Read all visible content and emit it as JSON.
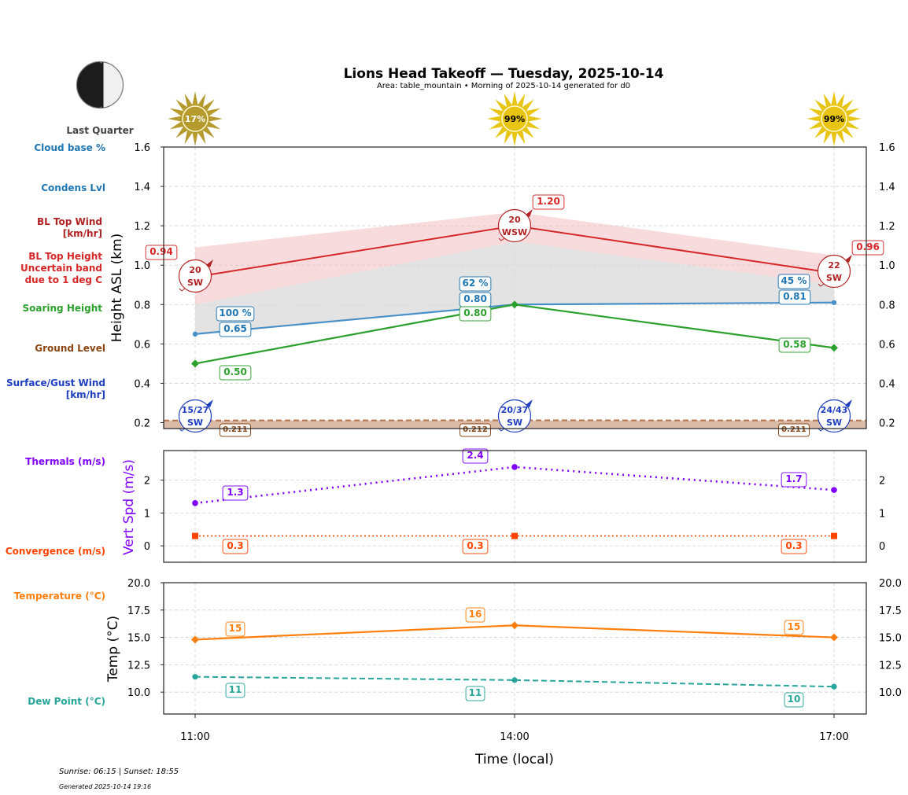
{
  "header": {
    "title": "Lions Head Takeoff — Tuesday, 2025-10-14",
    "subtitle": "Area: table_mountain • Morning of 2025-10-14 generated for d0"
  },
  "moon": {
    "phase": "Last Quarter",
    "icon": "moon-last-quarter-icon"
  },
  "footer": {
    "sun_times": "Sunrise: 06:15 | Sunset: 18:55",
    "generated": "Generated 2025-10-14 19:16"
  },
  "colors": {
    "cloud_base": "#1f77b4",
    "bl_top": "#d62728",
    "soaring": "#2ca02c",
    "ground": "#8b4513",
    "surface_wind": "#1e3fbf",
    "thermals": "#7f00ff",
    "convergence": "#ff4500",
    "temperature": "#ff7f0e",
    "dew_point": "#26a69a"
  },
  "side_labels": {
    "cloud_base": "Cloud base %",
    "condens": "Condens Lvl",
    "bl_wind_1": "BL Top Wind",
    "bl_wind_2": "[km/hr]",
    "bl_height_1": "BL Top Height",
    "bl_height_2": "Uncertain band",
    "bl_height_3": "due to 1 deg C",
    "soaring": "Soaring Height",
    "ground": "Ground Level",
    "surface_1": "Surface/Gust Wind",
    "surface_2": "[km/hr]",
    "thermals": "Thermals (m/s)",
    "convergence": "Convergence (m/s)",
    "temperature": "Temperature (°C)",
    "dew_point": "Dew Point (°C)"
  },
  "chart_data": [
    {
      "type": "line",
      "panel": "height",
      "ylabel": "Height ASL (km)",
      "ylim": [
        0.17,
        1.6
      ],
      "yticks": [
        "0.2",
        "0.4",
        "0.6",
        "0.8",
        "1.0",
        "1.2",
        "1.4",
        "1.6"
      ],
      "x": [
        "11:00",
        "14:00",
        "17:00"
      ],
      "sun_percent": [
        "17%",
        "99%",
        "99%"
      ],
      "series": [
        {
          "name": "BL Top Height",
          "values": [
            0.94,
            1.2,
            0.96
          ],
          "labels": [
            "0.94",
            "1.20",
            "0.96"
          ],
          "band_upper": [
            1.09,
            1.27,
            1.05
          ],
          "band_lower": [
            0.8,
            1.12,
            0.9
          ]
        },
        {
          "name": "Condens Lvl",
          "values": [
            0.65,
            0.8,
            0.81
          ],
          "labels": [
            "0.65",
            "0.80",
            "0.81"
          ]
        },
        {
          "name": "Cloud base %",
          "values": [
            100,
            62,
            45
          ],
          "labels": [
            "100 %",
            "62 %",
            "45 %"
          ]
        },
        {
          "name": "Soaring Height",
          "values": [
            0.5,
            0.8,
            0.58
          ],
          "labels": [
            "0.50",
            "0.80",
            "0.58"
          ]
        },
        {
          "name": "Ground Level",
          "values": [
            0.211,
            0.212,
            0.211
          ],
          "labels": [
            "0.211",
            "0.212",
            "0.211"
          ]
        }
      ],
      "bl_wind": [
        {
          "speed": "20",
          "dir": "SW"
        },
        {
          "speed": "20",
          "dir": "WSW"
        },
        {
          "speed": "22",
          "dir": "SW"
        }
      ],
      "surface_wind": [
        {
          "speed": "15/27",
          "dir": "SW"
        },
        {
          "speed": "20/37",
          "dir": "SW"
        },
        {
          "speed": "24/43",
          "dir": "SW"
        }
      ]
    },
    {
      "type": "line",
      "panel": "vertical-speed",
      "ylabel": "Vert Spd (m/s)",
      "ylim": [
        -0.5,
        2.9
      ],
      "yticks": [
        "0",
        "1",
        "2"
      ],
      "x": [
        "11:00",
        "14:00",
        "17:00"
      ],
      "series": [
        {
          "name": "Thermals (m/s)",
          "values": [
            1.3,
            2.4,
            1.7
          ],
          "labels": [
            "1.3",
            "2.4",
            "1.7"
          ]
        },
        {
          "name": "Convergence (m/s)",
          "values": [
            0.3,
            0.3,
            0.3
          ],
          "labels": [
            "0.3",
            "0.3",
            "0.3"
          ]
        }
      ]
    },
    {
      "type": "line",
      "panel": "temperature",
      "ylabel": "Temp (°C)",
      "xlabel": "Time (local)",
      "ylim": [
        8.0,
        20.0
      ],
      "yticks": [
        "10.0",
        "12.5",
        "15.0",
        "17.5",
        "20.0"
      ],
      "x": [
        "11:00",
        "14:00",
        "17:00"
      ],
      "series": [
        {
          "name": "Temperature (°C)",
          "values": [
            14.8,
            16.1,
            15.0
          ],
          "labels": [
            "15",
            "16",
            "15"
          ]
        },
        {
          "name": "Dew Point (°C)",
          "values": [
            11.4,
            11.1,
            10.5
          ],
          "labels": [
            "11",
            "11",
            "10"
          ]
        }
      ]
    }
  ]
}
